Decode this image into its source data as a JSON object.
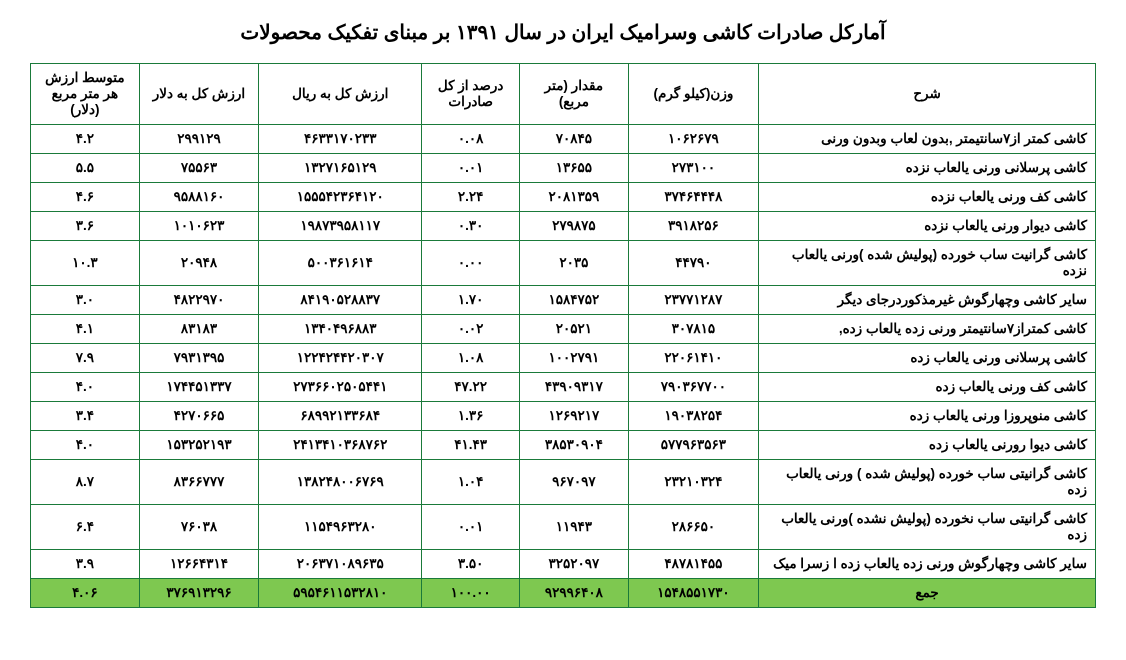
{
  "title": "آمارکل صادرات کاشی وسرامیک ایران در سال ۱۳۹۱ بر مبنای تفکیک محصولات",
  "headers": {
    "desc": "شرح",
    "weight": "وزن(کیلو گرم)",
    "qty": "مقدار\n(متر مربع)",
    "pct": "درصد از کل صادرات",
    "rial": "ارزش کل  به ریال",
    "dollar": "ارزش کل به  دلار",
    "avg": "متوسط ارزش هر متر مربع (دلار)"
  },
  "rows": [
    {
      "desc": "کاشی کمتر از۷سانتیمتر ,بدون لعاب وبدون ورنی",
      "weight": "۱۰۶۲۶۷۹",
      "qty": "۷۰۸۴۵",
      "pct": "۰.۰۸",
      "rial": "۴۶۳۳۱۷۰۲۳۳",
      "dollar": "۲۹۹۱۲۹",
      "avg": "۴.۲"
    },
    {
      "desc": "کاشی پرسلانی ورنی یالعاب نزده",
      "weight": "۲۷۳۱۰۰",
      "qty": "۱۳۶۵۵",
      "pct": "۰.۰۱",
      "rial": "۱۳۲۷۱۶۵۱۲۹",
      "dollar": "۷۵۵۶۳",
      "avg": "۵.۵"
    },
    {
      "desc": "کاشی کف ورنی یالعاب نزده",
      "weight": "۳۷۴۶۴۴۴۸",
      "qty": "۲۰۸۱۳۵۹",
      "pct": "۲.۲۴",
      "rial": "۱۵۵۵۴۲۳۶۴۱۲۰",
      "dollar": "۹۵۸۸۱۶۰",
      "avg": "۴.۶"
    },
    {
      "desc": "کاشی  دیوار ورنی یالعاب نزده",
      "weight": "۳۹۱۸۲۵۶",
      "qty": "۲۷۹۸۷۵",
      "pct": "۰.۳۰",
      "rial": "۱۹۸۷۳۹۵۸۱۱۷",
      "dollar": "۱۰۱۰۶۲۳",
      "avg": "۳.۶"
    },
    {
      "desc": "کاشی گرانیت ساب خورده  (پولیش  شده )ورنی یالعاب نزده",
      "weight": "۴۴۷۹۰",
      "qty": "۲۰۳۵",
      "pct": "۰.۰۰",
      "rial": "۵۰۰۳۶۱۶۱۴",
      "dollar": "۲۰۹۴۸",
      "avg": "۱۰.۳"
    },
    {
      "desc": "سایر کاشی وچهارگوش غیرمذکوردرجای دیگر",
      "weight": "۲۳۷۷۱۲۸۷",
      "qty": "۱۵۸۴۷۵۲",
      "pct": "۱.۷۰",
      "rial": "۸۴۱۹۰۵۲۸۸۳۷",
      "dollar": "۴۸۲۲۹۷۰",
      "avg": "۳.۰"
    },
    {
      "desc": "کاشی کمتراز۷سانتیمتر  ورنی زده یالعاب زده,",
      "weight": "۳۰۷۸۱۵",
      "qty": "۲۰۵۲۱",
      "pct": "۰.۰۲",
      "rial": "۱۳۴۰۴۹۶۸۸۳",
      "dollar": "۸۳۱۸۳",
      "avg": "۴.۱"
    },
    {
      "desc": "کاشی پرسلانی ورنی یالعاب زده",
      "weight": "۲۲۰۶۱۴۱۰",
      "qty": "۱۰۰۲۷۹۱",
      "pct": "۱.۰۸",
      "rial": "۱۲۲۴۲۴۴۲۰۳۰۷",
      "dollar": "۷۹۳۱۳۹۵",
      "avg": "۷.۹"
    },
    {
      "desc": "کاشی کف ورنی یالعاب زده",
      "weight": "۷۹۰۳۶۷۷۰۰",
      "qty": "۴۳۹۰۹۳۱۷",
      "pct": "۴۷.۲۲",
      "rial": "۲۷۳۶۶۰۲۵۰۵۴۴۱",
      "dollar": "۱۷۴۴۵۱۳۳۷",
      "avg": "۴.۰"
    },
    {
      "desc": "کاشی منوپروزا ورنی یالعاب زده",
      "weight": "۱۹۰۳۸۲۵۴",
      "qty": "۱۲۶۹۲۱۷",
      "pct": "۱.۳۶",
      "rial": "۶۸۹۹۲۱۳۳۶۸۴",
      "dollar": "۴۲۷۰۶۶۵",
      "avg": "۳.۴"
    },
    {
      "desc": "کاشی دیوا رورنی یالعاب زده",
      "weight": "۵۷۷۹۶۳۵۶۳",
      "qty": "۳۸۵۳۰۹۰۴",
      "pct": "۴۱.۴۳",
      "rial": "۲۴۱۳۴۱۰۳۶۸۷۶۲",
      "dollar": "۱۵۳۲۵۲۱۹۳",
      "avg": "۴.۰"
    },
    {
      "desc": "کاشی گرانیتی ساب  خورده  (پولیش  شده ) ورنی یالعاب زده",
      "weight": "۲۳۲۱۰۳۲۴",
      "qty": "۹۶۷۰۹۷",
      "pct": "۱.۰۴",
      "rial": "۱۳۸۲۴۸۰۰۶۷۶۹",
      "dollar": "۸۳۶۶۷۷۷",
      "avg": "۸.۷"
    },
    {
      "desc": "کاشی گرانیتی ساب  نخورده  (پولیش  نشده )ورنی یالعاب زده",
      "weight": "۲۸۶۶۵۰",
      "qty": "۱۱۹۴۳",
      "pct": "۰.۰۱",
      "rial": "۱۱۵۴۹۶۳۲۸۰",
      "dollar": "۷۶۰۳۸",
      "avg": "۶.۴"
    },
    {
      "desc": "سایر کاشی وچهارگوش ورنی زده یالعاب زده ا زسرا میک",
      "weight": "۴۸۷۸۱۴۵۵",
      "qty": "۳۲۵۲۰۹۷",
      "pct": "۳.۵۰",
      "rial": "۲۰۶۳۷۱۰۸۹۶۳۵",
      "dollar": "۱۲۶۶۴۳۱۴",
      "avg": "۳.۹"
    }
  ],
  "total": {
    "desc": "جمع",
    "weight": "۱۵۴۸۵۵۱۷۳۰",
    "qty": "۹۲۹۹۶۴۰۸",
    "pct": "۱۰۰.۰۰",
    "rial": "۵۹۵۴۶۱۱۵۳۲۸۱۰",
    "dollar": "۳۷۶۹۱۳۲۹۶",
    "avg": "۴.۰۶"
  },
  "style": {
    "border_color": "#1a7a3a",
    "total_bg": "#7ec850",
    "title_fontsize": 20,
    "cell_fontsize": 13.5
  }
}
